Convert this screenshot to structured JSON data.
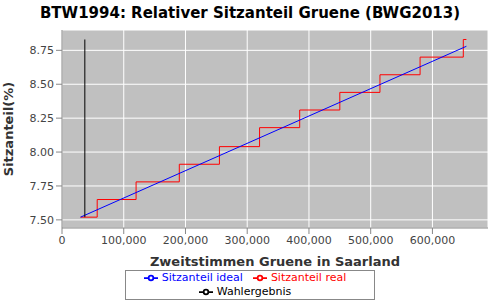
{
  "chart_data": {
    "type": "line",
    "title": "BTW1994: Relativer Sitzanteil Gruene (BWG2013)",
    "x_label": "Zweitstimmen Gruene in Saarland",
    "y_label": "Sitzanteil(%)",
    "series": [
      {
        "name": "Sitzanteil real",
        "color": "#ff0000",
        "line_style": "step",
        "x": [
          30000,
          57000,
          120000,
          190000,
          255000,
          320000,
          385000,
          450000,
          515000,
          580000,
          650000,
          655000
        ],
        "values": [
          7.52,
          7.65,
          7.78,
          7.91,
          8.04,
          8.18,
          8.31,
          8.44,
          8.57,
          8.7,
          8.83,
          8.83
        ]
      },
      {
        "name": "Sitzanteil ideal",
        "color": "#0000ff",
        "line_style": "solid",
        "x": [
          30000,
          655000
        ],
        "values": [
          7.52,
          8.78
        ]
      },
      {
        "name": "Wahlergebnis",
        "color": "#000000",
        "line_style": "solid",
        "x": [
          37000,
          37000
        ],
        "values": [
          7.52,
          8.83
        ]
      }
    ],
    "xlim": [
      0,
      690000
    ],
    "xticks": [
      0,
      {
        "value": 100000,
        "label": "100,000"
      },
      {
        "value": 200000,
        "label": "200,000"
      },
      {
        "value": 300000,
        "label": "300,000"
      },
      {
        "value": 400000,
        "label": "400,000"
      },
      {
        "value": 500000,
        "label": "500,000"
      },
      {
        "value": 600000,
        "label": "600,000"
      }
    ],
    "ylim": [
      7.44,
      8.9
    ],
    "yticks": [
      {
        "value": 7.5,
        "label": "7.50"
      },
      {
        "value": 7.75,
        "label": "7.75"
      },
      {
        "value": 8,
        "label": "8.00"
      },
      {
        "value": 8.25,
        "label": "8.25"
      },
      {
        "value": 8.5,
        "label": "8.50"
      },
      {
        "value": 8.75,
        "label": "8.75"
      }
    ],
    "grid": true,
    "legend": "bottom"
  }
}
